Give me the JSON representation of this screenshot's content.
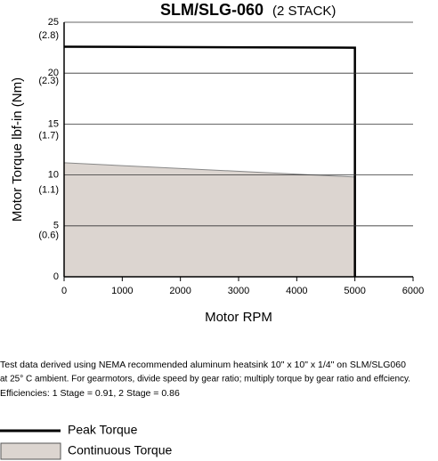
{
  "chart_data": {
    "type": "line",
    "title": "SLM/SLG-060",
    "subtitle": "(2 STACK)",
    "x_label": "Motor RPM",
    "y_label": "Motor Torque lbf-in (Nm)",
    "x": [
      0,
      5000,
      5000
    ],
    "series": [
      {
        "name": "Peak Torque",
        "color": "#000000",
        "values": [
          22.6,
          22.5,
          0
        ]
      },
      {
        "name": "Continuous Torque",
        "color": "#dcd5d0",
        "fill": true,
        "values": [
          11.2,
          9.8,
          0
        ]
      }
    ],
    "xlim": [
      0,
      6000
    ],
    "xticks": [
      0,
      1000,
      2000,
      3000,
      4000,
      5000,
      6000
    ],
    "ylim": [
      0,
      25
    ],
    "yticks": [
      0,
      5,
      10,
      15,
      20,
      25
    ],
    "y2lim": [
      0,
      2.8
    ],
    "y2ticks": [
      {
        "value": 0.6,
        "label": "(0.6)"
      },
      {
        "value": 1.1,
        "label": "(1.1)"
      },
      {
        "value": 1.7,
        "label": "(1.7)"
      },
      {
        "value": 2.3,
        "label": "(2.3)"
      },
      {
        "value": 2.8,
        "label": "(2.8)"
      }
    ],
    "grid": true,
    "legend": "below",
    "notes": [
      "Test data derived using NEMA recommended aluminum heatsink 10\" x 10\" x 1/4\" on SLM/SLG060",
      "at 25° C ambient. For gearmotors, divide speed by gear ratio; multiply torque by gear ratio and effciency.",
      "Efficiencies: 1 Stage = 0.91, 2 Stage = 0.86"
    ]
  }
}
